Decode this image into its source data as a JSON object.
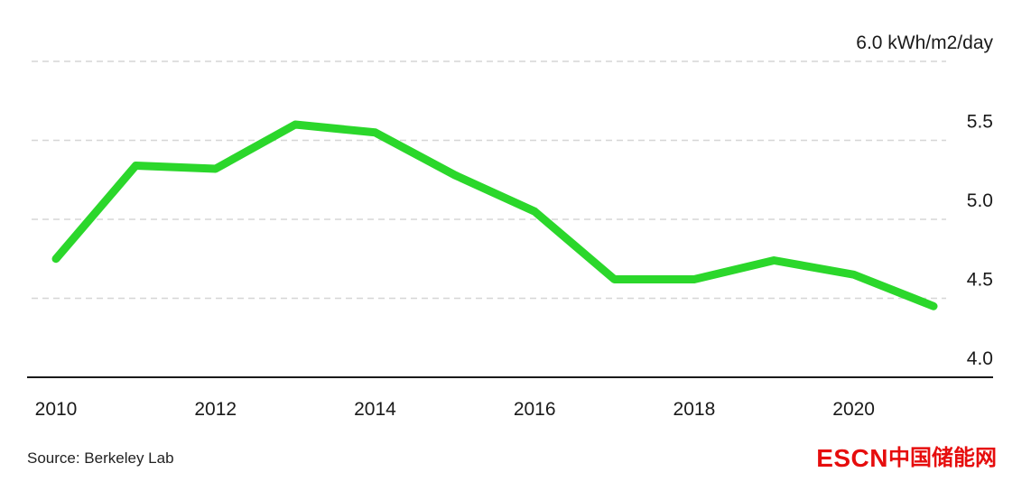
{
  "chart_data": {
    "type": "line",
    "title": "",
    "unit": "kWh/m2/day",
    "x": [
      2010,
      2011,
      2012,
      2013,
      2014,
      2015,
      2016,
      2017,
      2018,
      2019,
      2020,
      2021
    ],
    "values": [
      4.75,
      5.34,
      5.32,
      5.6,
      5.55,
      5.28,
      5.05,
      4.62,
      4.62,
      4.74,
      4.65,
      4.45
    ],
    "ylim": [
      4.0,
      6.0
    ],
    "yticks": [
      {
        "value": 4.0,
        "label": "4.0"
      },
      {
        "value": 4.5,
        "label": "4.5"
      },
      {
        "value": 5.0,
        "label": "5.0"
      },
      {
        "value": 5.5,
        "label": "5.5"
      },
      {
        "value": 6.0,
        "label": "6.0 kWh/m2/day"
      }
    ],
    "xticks": [
      2010,
      2012,
      2014,
      2016,
      2018,
      2020
    ],
    "line_color": "#2bd72b",
    "grid": "horizontal-dashed",
    "legend": "none"
  },
  "footer": {
    "source": "Source: Berkeley Lab",
    "logo_en": "ESCN",
    "logo_cn": "中国储能网"
  },
  "colors": {
    "line": "#2bd72b",
    "logo_red": "#e60d0d",
    "grid": "#d6d6d6",
    "axis": "#1a1a1a",
    "background": "#ffffff"
  }
}
